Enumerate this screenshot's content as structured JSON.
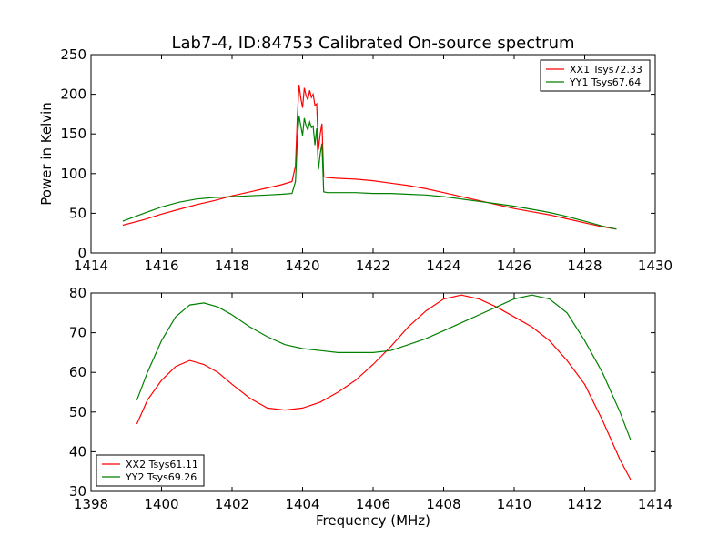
{
  "figure": {
    "title": "Lab7-4, ID:84753 Calibrated On-source spectrum",
    "ylabel": "Power in Kelvin",
    "xlabel": "Frequency (MHz)"
  },
  "chart_data": [
    {
      "type": "line",
      "xlim": [
        1414,
        1430
      ],
      "ylim": [
        0,
        250
      ],
      "xticks": [
        1414,
        1416,
        1418,
        1420,
        1422,
        1424,
        1426,
        1428,
        1430
      ],
      "yticks": [
        0,
        50,
        100,
        150,
        200,
        250
      ],
      "legend": "top-right",
      "grid": false,
      "series": [
        {
          "name": "XX1 Tsys72.33",
          "color": "#ff0000",
          "x": [
            1414.9,
            1415.5,
            1416,
            1416.5,
            1417,
            1417.5,
            1418,
            1418.5,
            1419,
            1419.4,
            1419.7,
            1419.8,
            1419.85,
            1419.9,
            1419.95,
            1420.0,
            1420.05,
            1420.1,
            1420.15,
            1420.2,
            1420.25,
            1420.3,
            1420.35,
            1420.4,
            1420.45,
            1420.5,
            1420.55,
            1420.6,
            1420.7,
            1421,
            1421.5,
            1422,
            1422.5,
            1423,
            1423.5,
            1424,
            1424.5,
            1425,
            1425.5,
            1426,
            1426.5,
            1427,
            1427.5,
            1428,
            1428.5,
            1428.9
          ],
          "y": [
            35,
            42,
            49,
            55,
            61,
            66,
            72,
            77,
            82,
            86,
            90,
            110,
            170,
            212,
            195,
            183,
            208,
            198,
            193,
            205,
            196,
            200,
            186,
            188,
            130,
            150,
            163,
            96,
            95,
            94,
            93,
            91,
            88,
            85,
            81,
            76,
            71,
            66,
            61,
            56,
            52,
            48,
            43,
            38,
            33,
            30
          ]
        },
        {
          "name": "YY1 Tsys67.64",
          "color": "#008000",
          "x": [
            1414.9,
            1415.5,
            1416,
            1416.5,
            1417,
            1417.5,
            1418,
            1418.5,
            1419,
            1419.4,
            1419.7,
            1419.8,
            1419.85,
            1419.9,
            1419.95,
            1420.0,
            1420.05,
            1420.1,
            1420.15,
            1420.2,
            1420.25,
            1420.3,
            1420.35,
            1420.4,
            1420.45,
            1420.5,
            1420.55,
            1420.6,
            1420.7,
            1421,
            1421.5,
            1422,
            1422.5,
            1423,
            1423.5,
            1424,
            1424.5,
            1425,
            1425.5,
            1426,
            1426.5,
            1427,
            1427.5,
            1428,
            1428.5,
            1428.9
          ],
          "y": [
            40,
            50,
            58,
            64,
            68,
            70,
            71,
            72,
            73,
            74,
            75,
            90,
            140,
            173,
            160,
            148,
            170,
            160,
            155,
            165,
            158,
            160,
            136,
            157,
            105,
            125,
            138,
            77,
            76,
            76,
            76,
            75,
            75,
            74,
            73,
            71,
            68,
            65,
            62,
            59,
            55,
            51,
            46,
            40,
            34,
            30
          ]
        }
      ]
    },
    {
      "type": "line",
      "xlim": [
        1398,
        1414
      ],
      "ylim": [
        30,
        80
      ],
      "xticks": [
        1398,
        1400,
        1402,
        1404,
        1406,
        1408,
        1410,
        1412,
        1414
      ],
      "yticks": [
        30,
        40,
        50,
        60,
        70,
        80
      ],
      "legend": "bottom-left",
      "grid": false,
      "series": [
        {
          "name": "XX2 Tsys61.11",
          "color": "#ff0000",
          "x": [
            1399.3,
            1399.6,
            1400,
            1400.4,
            1400.8,
            1401.2,
            1401.6,
            1402,
            1402.5,
            1403,
            1403.5,
            1404,
            1404.5,
            1405,
            1405.5,
            1406,
            1406.5,
            1407,
            1407.5,
            1408,
            1408.5,
            1409,
            1409.5,
            1410,
            1410.5,
            1411,
            1411.5,
            1412,
            1412.5,
            1413,
            1413.3
          ],
          "y": [
            47,
            53,
            58,
            61.5,
            63,
            62,
            60,
            57,
            53.5,
            51,
            50.5,
            51,
            52.5,
            55,
            58,
            62,
            66.5,
            71.5,
            75.5,
            78.5,
            79.5,
            78.5,
            76.5,
            74,
            71.5,
            68,
            63,
            57,
            48,
            38,
            33
          ]
        },
        {
          "name": "YY2 Tsys69.26",
          "color": "#008000",
          "x": [
            1399.3,
            1399.6,
            1400,
            1400.4,
            1400.8,
            1401.2,
            1401.6,
            1402,
            1402.5,
            1403,
            1403.5,
            1404,
            1404.5,
            1405,
            1405.5,
            1406,
            1406.5,
            1407,
            1407.5,
            1408,
            1408.5,
            1409,
            1409.5,
            1410,
            1410.5,
            1411,
            1411.5,
            1412,
            1412.5,
            1413,
            1413.3
          ],
          "y": [
            53,
            60,
            68,
            74,
            77,
            77.5,
            76.5,
            74.5,
            71.5,
            69,
            67,
            66,
            65.5,
            65,
            65,
            65,
            65.5,
            67,
            68.5,
            70.5,
            72.5,
            74.5,
            76.5,
            78.5,
            79.5,
            78.5,
            75,
            68,
            60,
            50,
            43
          ]
        }
      ]
    }
  ]
}
